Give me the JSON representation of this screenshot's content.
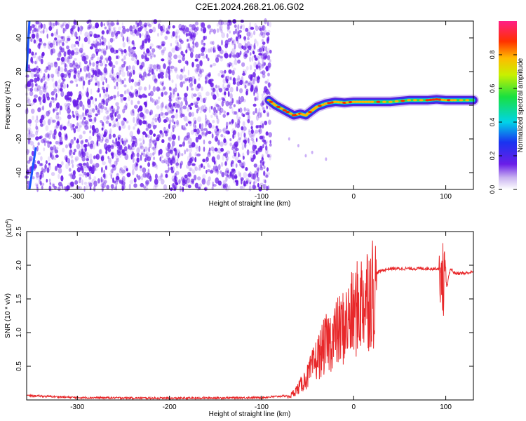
{
  "title": "C2E1.2024.268.21.06.G02",
  "colors": {
    "spectrum_points": "#6a1ee8",
    "snr_line": "#e8282a",
    "axis": "#000000"
  },
  "chart_data": [
    {
      "type": "heatmap",
      "title": "C2E1.2024.268.21.06.G02",
      "xlabel": "Height of straight line (km)",
      "ylabel": "Frequency (Hz)",
      "xlim": [
        -355,
        130
      ],
      "ylim": [
        -50,
        50
      ],
      "x_ticks": [
        -300,
        -200,
        -100,
        0,
        100
      ],
      "y_ticks": [
        -40,
        -20,
        0,
        20,
        40
      ],
      "noise_region_x": [
        -355,
        -90
      ],
      "signal_trace": {
        "x": [
          -92,
          -85,
          -75,
          -65,
          -58,
          -52,
          -45,
          -40,
          -30,
          -20,
          -10,
          0,
          10,
          20,
          40,
          60,
          80,
          90,
          100,
          110,
          130
        ],
        "y": [
          3,
          0,
          -3,
          -6,
          -5,
          -6,
          -3,
          -1,
          1,
          2,
          1.5,
          2,
          2,
          2,
          2,
          3,
          3,
          3.5,
          3,
          3,
          3
        ]
      },
      "colorbar": {
        "label": "Normalized spectral amplitude",
        "range": [
          0,
          1
        ],
        "ticks": [
          "0.0",
          "0.2",
          "0.4",
          "0.6",
          "0.8"
        ]
      },
      "grid": false
    },
    {
      "type": "line",
      "xlabel": "Height of straight line (km)",
      "ylabel": "SNR (10 * v/v)",
      "y_scale_label": "(x10^4)",
      "xlim": [
        -355,
        130
      ],
      "ylim": [
        0,
        2.5
      ],
      "x_ticks": [
        -300,
        -200,
        -100,
        0,
        100
      ],
      "y_ticks": [
        "0.5",
        "1.0",
        "1.5",
        "2.0",
        "2.5"
      ],
      "series": [
        {
          "x": [
            -355,
            -300,
            -200,
            -100,
            -70,
            -60,
            -50,
            -40,
            -30,
            -20,
            -10,
            0,
            10,
            20,
            30,
            40,
            60,
            80,
            95,
            100,
            105,
            110,
            120,
            130
          ],
          "y": [
            0.05,
            0.02,
            0.01,
            0.02,
            0.05,
            0.2,
            0.4,
            0.7,
            0.95,
            1.1,
            1.25,
            1.45,
            1.7,
            1.85,
            1.92,
            1.95,
            1.95,
            1.95,
            1.95,
            1.6,
            1.95,
            1.88,
            1.88,
            1.9
          ]
        }
      ],
      "grid": false
    }
  ]
}
